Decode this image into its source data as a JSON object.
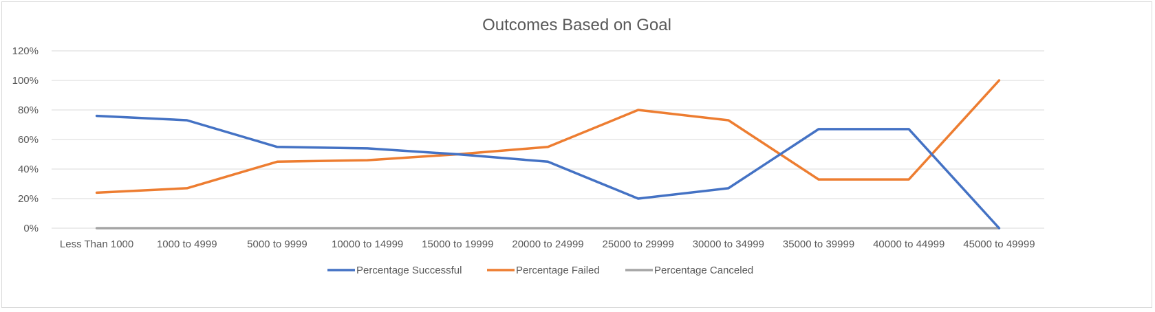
{
  "chart_data": {
    "type": "line",
    "title": "Outcomes Based on Goal",
    "xlabel": "",
    "ylabel": "",
    "categories": [
      "Less Than 1000",
      "1000 to 4999",
      "5000 to 9999",
      "10000 to 14999",
      "15000 to 19999",
      "20000 to 24999",
      "25000 to 29999",
      "30000 to 34999",
      "35000 to 39999",
      "40000 to 44999",
      "45000 to 49999"
    ],
    "y_ticks": [
      "0%",
      "20%",
      "40%",
      "60%",
      "80%",
      "100%",
      "120%"
    ],
    "ylim": [
      0,
      1.2
    ],
    "grid": true,
    "legend_position": "bottom",
    "series": [
      {
        "name": "Percentage Successful",
        "color": "#4472c4",
        "values": [
          0.76,
          0.73,
          0.55,
          0.54,
          0.5,
          0.45,
          0.2,
          0.27,
          0.67,
          0.67,
          0.0
        ]
      },
      {
        "name": "Percentage Failed",
        "color": "#ed7d31",
        "values": [
          0.24,
          0.27,
          0.45,
          0.46,
          0.5,
          0.55,
          0.8,
          0.73,
          0.33,
          0.33,
          1.0
        ]
      },
      {
        "name": "Percentage Canceled",
        "color": "#a5a5a5",
        "values": [
          0,
          0,
          0,
          0,
          0,
          0,
          0,
          0,
          0,
          0,
          0
        ]
      }
    ]
  }
}
